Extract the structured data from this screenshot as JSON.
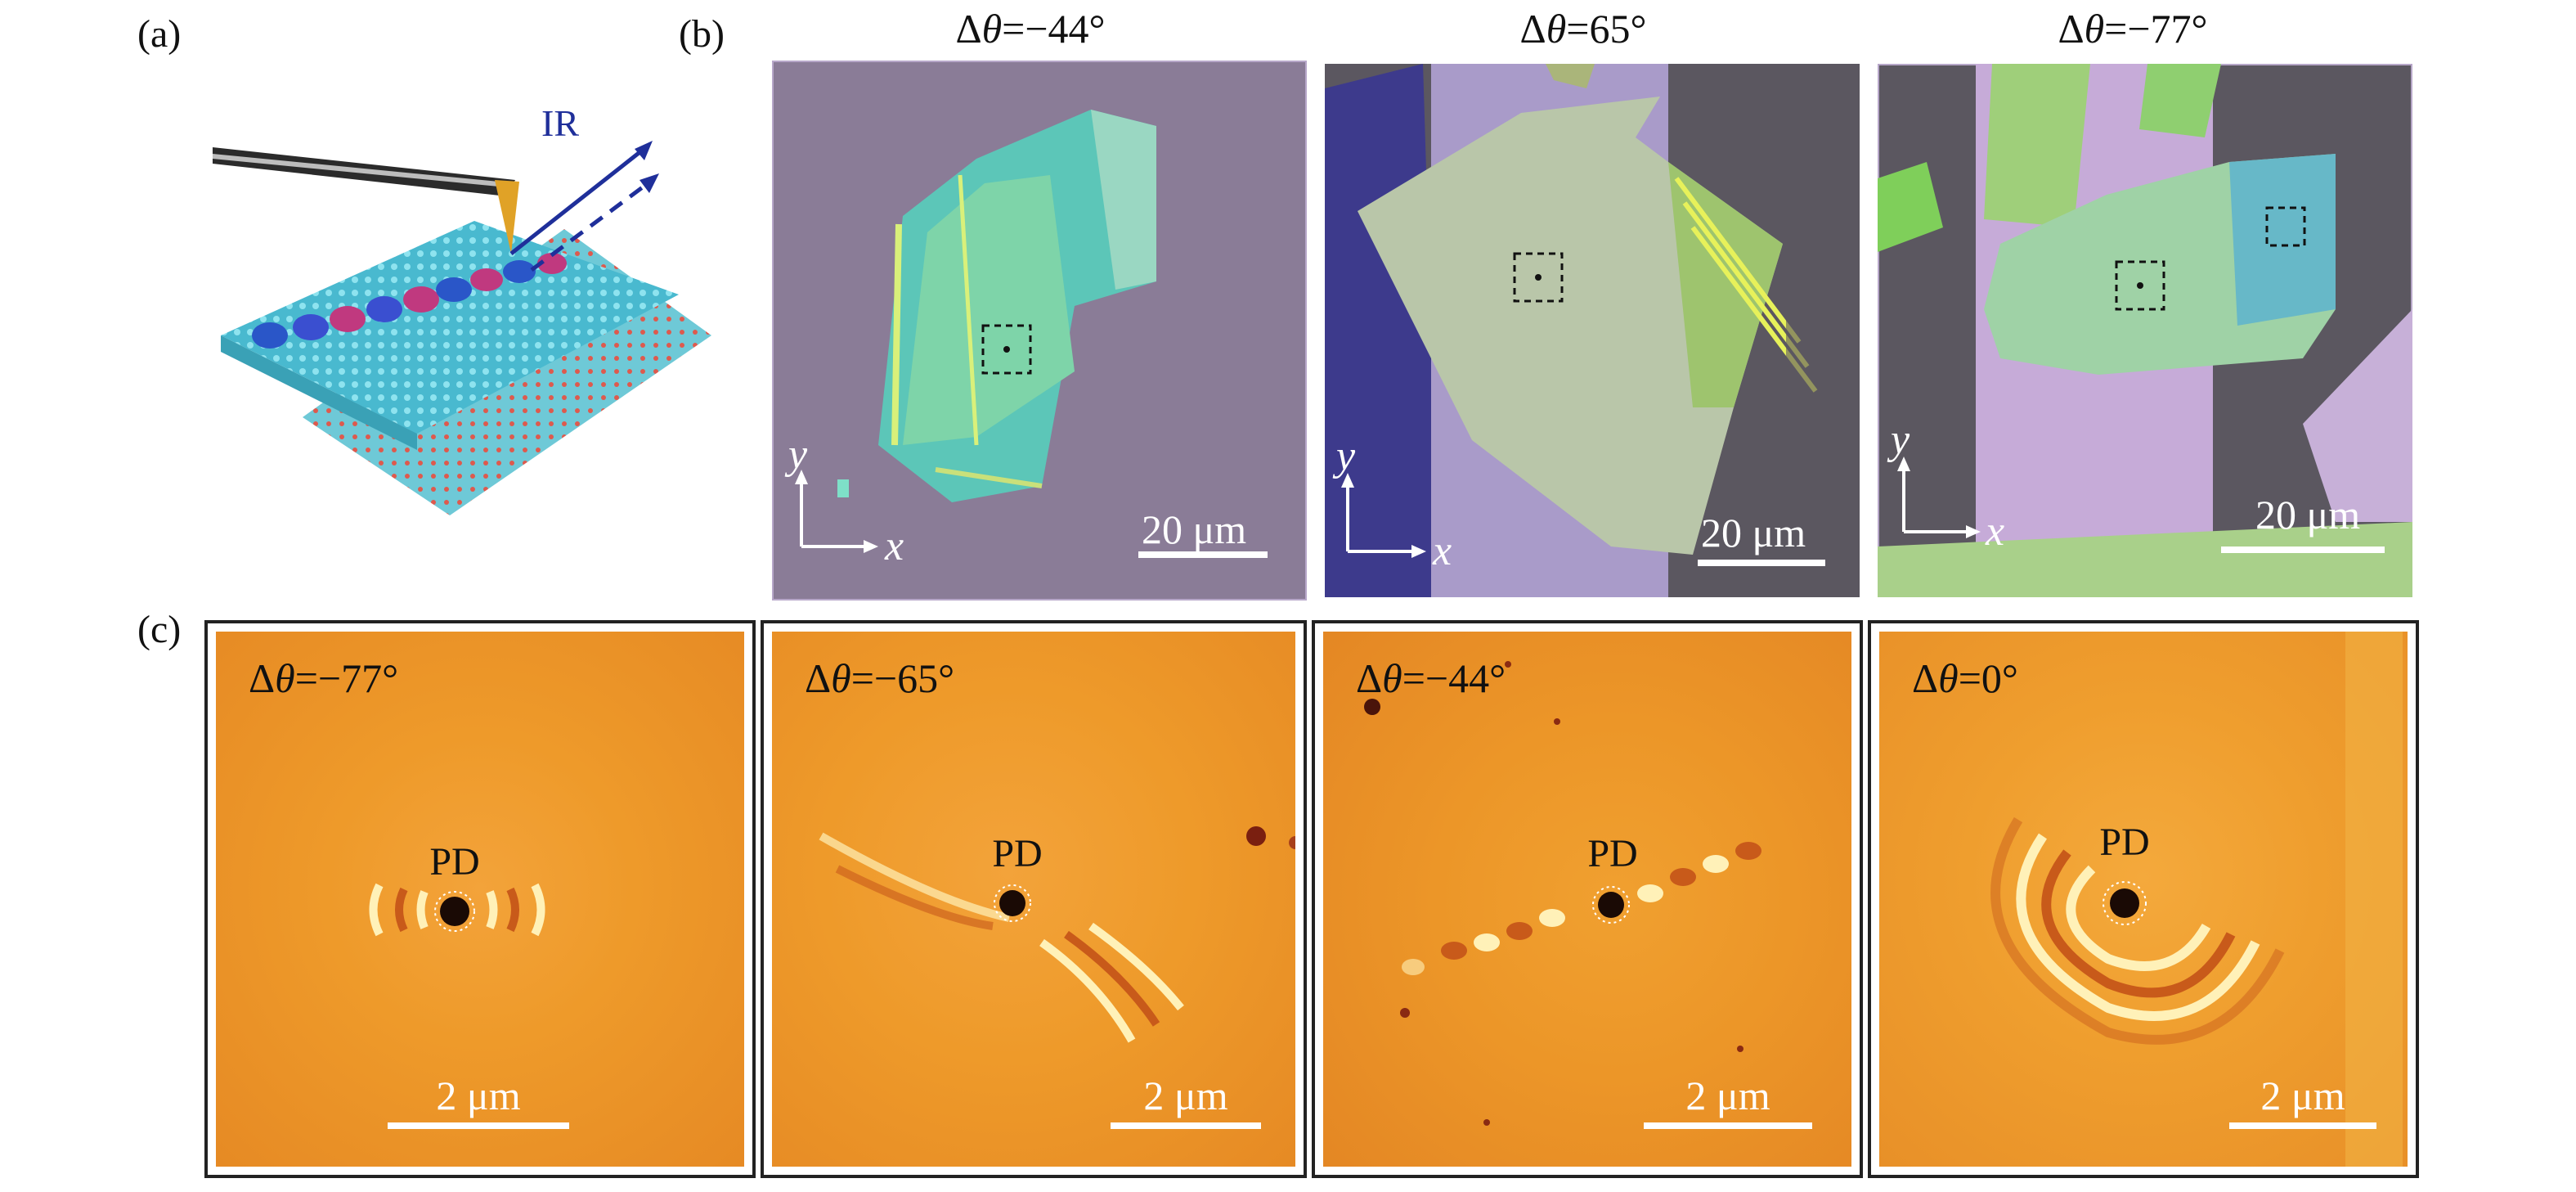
{
  "labels": {
    "a": "(a)",
    "b": "(b)",
    "c": "(c)"
  },
  "schematic": {
    "ir_label": "IR"
  },
  "panel_b": [
    {
      "title_prefix": "Δ",
      "title_var": "θ",
      "title_value": "=−44°",
      "axis_x": "x",
      "axis_y": "y",
      "scale": "20 μm"
    },
    {
      "title_prefix": "Δ",
      "title_var": "θ",
      "title_value": "=65°",
      "axis_x": "x",
      "axis_y": "y",
      "scale": "20 μm"
    },
    {
      "title_prefix": "Δ",
      "title_var": "θ",
      "title_value": "=−77°",
      "axis_x": "x",
      "axis_y": "y",
      "scale": "20 μm"
    }
  ],
  "panel_c": [
    {
      "angle_prefix": "Δ",
      "angle_var": "θ",
      "angle_value": "=−77°",
      "source_label": "PD",
      "scale": "2 μm"
    },
    {
      "angle_prefix": "Δ",
      "angle_var": "θ",
      "angle_value": "=−65°",
      "source_label": "PD",
      "scale": "2 μm"
    },
    {
      "angle_prefix": "Δ",
      "angle_var": "θ",
      "angle_value": "=−44°",
      "source_label": "PD",
      "scale": "2 μm"
    },
    {
      "angle_prefix": "Δ",
      "angle_var": "θ",
      "angle_value": "=0°",
      "source_label": "PD",
      "scale": "2 μm"
    }
  ],
  "colors": {
    "nearfield_bg": "#ee9a2a",
    "substrate": "#8a7c97",
    "fringe_light": "#fff1b8",
    "fringe_dark": "#c85a1a"
  }
}
